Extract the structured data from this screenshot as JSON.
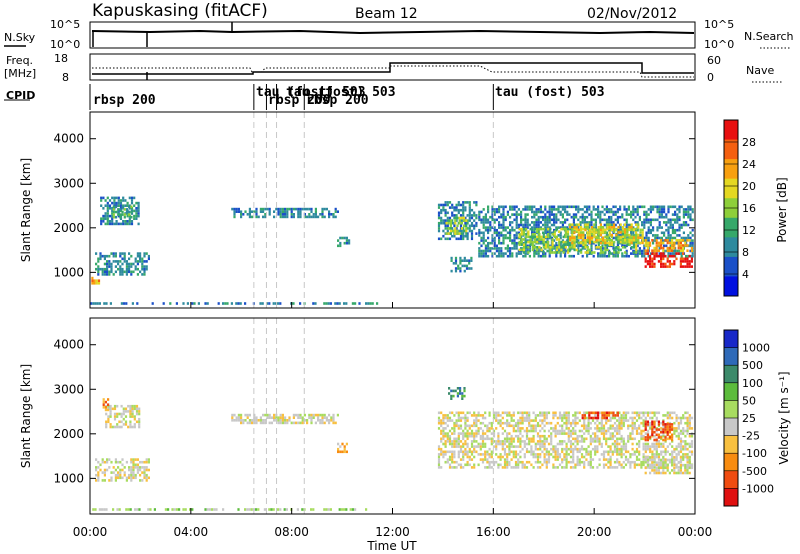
{
  "header": {
    "station": "Kapuskasing (fitACF)",
    "beam": "Beam 12",
    "date": "02/Nov/2012"
  },
  "status_panels": {
    "nsky_label": "N.Sky",
    "nsky_ticks": [
      "10^5",
      "10^0"
    ],
    "nsearch_label": "N.Search",
    "nsearch_ticks": [
      "10^5",
      "10^0"
    ],
    "freq_label": "Freq.",
    "freq_unit": "[MHz]",
    "freq_ticks": [
      "18",
      "8"
    ],
    "nave_label": "Nave",
    "nave_ticks": [
      "60",
      "0"
    ],
    "cpid_label": "CPID",
    "cpid_segments": [
      {
        "label": "rbsp 200",
        "start_hour": 0.0
      },
      {
        "label": "tau (fost) 503",
        "start_hour": 6.5
      },
      {
        "label": "rbsp 200",
        "start_hour": 7.0
      },
      {
        "label": "tau (fost) 503",
        "start_hour": 7.4
      },
      {
        "label": "rbsp 200",
        "start_hour": 8.5
      },
      {
        "label": "tau (fost) 503",
        "start_hour": 16.0
      }
    ]
  },
  "colorbars": {
    "power": {
      "label": "Power [dB]",
      "ticks": [
        "28",
        "24",
        "20",
        "16",
        "12",
        "8",
        "4"
      ],
      "colors": [
        "#0010e0",
        "#1a50c8",
        "#2e8a9e",
        "#36a86a",
        "#8ecf3a",
        "#e4d822",
        "#f8a010",
        "#f46010",
        "#e81010"
      ]
    },
    "velocity": {
      "label": "Velocity [m s⁻¹]",
      "ticks": [
        "1000",
        "500",
        "100",
        "50",
        "25",
        "-25",
        "-100",
        "-500",
        "-1000"
      ],
      "colors": [
        "#1828c8",
        "#2f6ab8",
        "#3c8a6a",
        "#5cbc3c",
        "#a8dc60",
        "#c8c8c8",
        "#f8c040",
        "#f88c10",
        "#f04c10",
        "#e01010"
      ]
    }
  },
  "chart_data": {
    "type": "heatmap",
    "xlabel": "Time UT",
    "ylabel": "Slant Range [km]",
    "x_ticks": [
      "00:00",
      "04:00",
      "08:00",
      "12:00",
      "16:00",
      "20:00",
      "00:00"
    ],
    "xlim": [
      0,
      24
    ],
    "ylim": [
      200,
      4600
    ],
    "y_ticks": [
      "4000",
      "3000",
      "2000",
      "1000"
    ],
    "y_tick_values": [
      4000,
      3000,
      2000,
      1000
    ],
    "mode_change_hours": [
      6.5,
      7.0,
      7.4,
      8.5,
      16.0
    ],
    "power_patches": [
      {
        "t0": 0.05,
        "t1": 0.4,
        "r0": 700,
        "r1": 900,
        "level": 6
      },
      {
        "t0": 0.2,
        "t1": 2.4,
        "r0": 900,
        "r1": 1450,
        "level": 2
      },
      {
        "t0": 0.4,
        "t1": 2.0,
        "r0": 2050,
        "r1": 2700,
        "level": 2
      },
      {
        "t0": 0.9,
        "t1": 1.7,
        "r0": 2150,
        "r1": 2500,
        "level": 3
      },
      {
        "t0": 5.6,
        "t1": 9.9,
        "r0": 2200,
        "r1": 2450,
        "level": 2
      },
      {
        "t0": 9.8,
        "t1": 10.4,
        "r0": 1550,
        "r1": 1800,
        "level": 2
      },
      {
        "t0": 13.8,
        "t1": 15.4,
        "r0": 1700,
        "r1": 2600,
        "level": 2
      },
      {
        "t0": 14.1,
        "t1": 15.0,
        "r0": 1800,
        "r1": 2250,
        "level": 4
      },
      {
        "t0": 14.3,
        "t1": 15.2,
        "r0": 950,
        "r1": 1350,
        "level": 2
      },
      {
        "t0": 15.4,
        "t1": 24.0,
        "r0": 1300,
        "r1": 2500,
        "level": 2
      },
      {
        "t0": 17.0,
        "t1": 21.8,
        "r0": 1400,
        "r1": 2000,
        "level": 4
      },
      {
        "t0": 19.0,
        "t1": 22.0,
        "r0": 1600,
        "r1": 2100,
        "level": 5
      },
      {
        "t0": 22.0,
        "t1": 24.0,
        "r0": 1050,
        "r1": 1450,
        "level": 8
      },
      {
        "t0": 22.0,
        "t1": 24.0,
        "r0": 1450,
        "r1": 1750,
        "level": 6
      },
      {
        "t0": 0.0,
        "t1": 11.5,
        "r0": 230,
        "r1": 330,
        "level": 2
      }
    ],
    "velocity_patches": [
      {
        "t0": 0.2,
        "t1": 2.4,
        "r0": 900,
        "r1": 1450,
        "level": 5
      },
      {
        "t0": 0.6,
        "t1": 2.0,
        "r0": 2100,
        "r1": 2650,
        "level": 5
      },
      {
        "t0": 0.5,
        "t1": 0.8,
        "r0": 2500,
        "r1": 2800,
        "level": 7
      },
      {
        "t0": 5.6,
        "t1": 9.9,
        "r0": 2200,
        "r1": 2450,
        "level": 5
      },
      {
        "t0": 9.8,
        "t1": 10.3,
        "r0": 1550,
        "r1": 1800,
        "level": 6
      },
      {
        "t0": 13.8,
        "t1": 24.0,
        "r0": 1200,
        "r1": 2500,
        "level": 5
      },
      {
        "t0": 14.2,
        "t1": 14.9,
        "r0": 2700,
        "r1": 3050,
        "level": 2
      },
      {
        "t0": 19.5,
        "t1": 21.0,
        "r0": 2300,
        "r1": 2500,
        "level": 8
      },
      {
        "t0": 22.0,
        "t1": 23.2,
        "r0": 1800,
        "r1": 2300,
        "level": 8
      },
      {
        "t0": 22.0,
        "t1": 24.0,
        "r0": 1050,
        "r1": 1500,
        "level": 5
      },
      {
        "t0": 0.0,
        "t1": 11.0,
        "r0": 230,
        "r1": 330,
        "level": 4
      }
    ]
  }
}
